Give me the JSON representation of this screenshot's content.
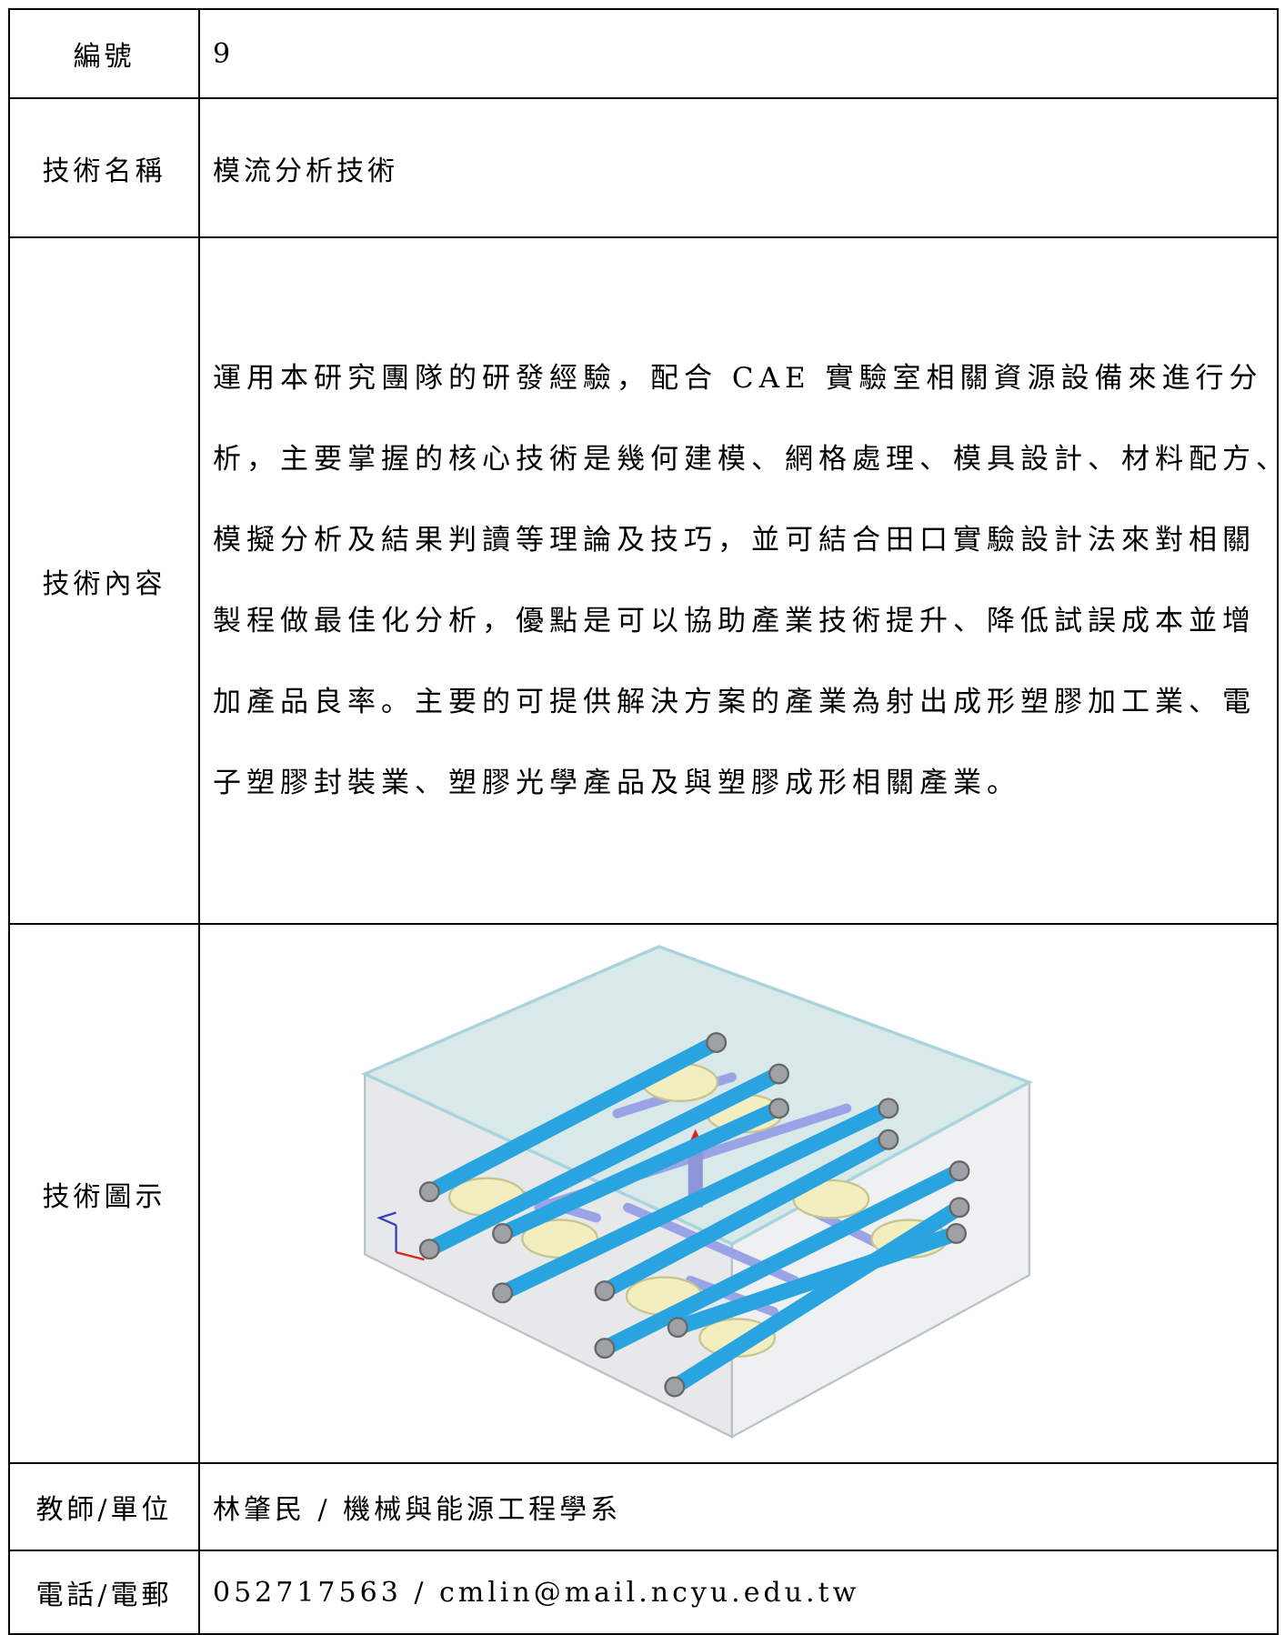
{
  "table": {
    "rows": [
      {
        "label": "編號",
        "value": "9"
      },
      {
        "label": "技術名稱",
        "value": "模流分析技術"
      },
      {
        "label": "技術內容",
        "lines": [
          "運用本研究團隊的研發經驗，配合 CAE 實驗室相關資源設備來進行分",
          "析，主要掌握的核心技術是幾何建模、網格處理、模具設計、材料配方、",
          "模擬分析及結果判讀等理論及技巧，並可結合田口實驗設計法來對相關",
          "製程做最佳化分析，優點是可以協助產業技術提升、降低試誤成本並增",
          "加產品良率。主要的可提供解決方案的產業為射出成形塑膠加工業、電",
          "子塑膠封裝業、塑膠光學產品及與塑膠成形相關產業。"
        ]
      },
      {
        "label": "技術圖示"
      },
      {
        "label": "教師/單位",
        "value": "林肇民 / 機械與能源工程學系"
      },
      {
        "label": "電話/電郵",
        "value": "052717563 / cmlin@mail.ncyu.edu.tw"
      }
    ]
  }
}
